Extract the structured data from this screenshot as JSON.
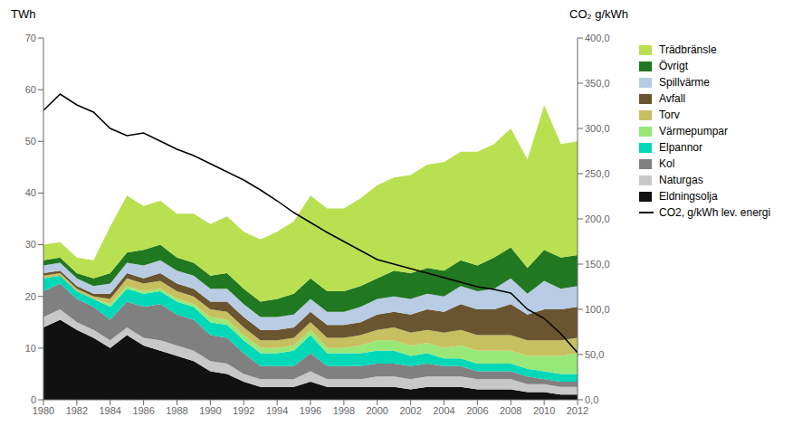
{
  "chart_data": {
    "type": "area",
    "stacked": true,
    "grid": false,
    "legend": "right",
    "y_label": "TWh",
    "y2_label": "CO₂ g/kWh",
    "x": [
      1980,
      1981,
      1982,
      1983,
      1984,
      1985,
      1986,
      1987,
      1988,
      1989,
      1990,
      1991,
      1992,
      1993,
      1994,
      1995,
      1996,
      1997,
      1998,
      1999,
      2000,
      2001,
      2002,
      2003,
      2004,
      2005,
      2006,
      2007,
      2008,
      2009,
      2010,
      2011,
      2012
    ],
    "xlim": [
      1980,
      2012
    ],
    "xticks": [
      1980,
      1982,
      1984,
      1986,
      1988,
      1990,
      1992,
      1994,
      1996,
      1998,
      2000,
      2002,
      2004,
      2006,
      2008,
      2010,
      2012
    ],
    "ylim": [
      0,
      70
    ],
    "yticks": [
      0,
      10,
      20,
      30,
      40,
      50,
      60,
      70
    ],
    "y2lim": [
      0,
      400
    ],
    "y2ticks": [
      {
        "value": 0.0,
        "label": "0,0"
      },
      {
        "value": 50.0,
        "label": "50,0"
      },
      {
        "value": 100.0,
        "label": "100,0"
      },
      {
        "value": 150.0,
        "label": "150,0"
      },
      {
        "value": 200.0,
        "label": "200,0"
      },
      {
        "value": 250.0,
        "label": "250,0"
      },
      {
        "value": 300.0,
        "label": "300,0"
      },
      {
        "value": 350.0,
        "label": "350,0"
      },
      {
        "value": 400.0,
        "label": "400,0"
      }
    ],
    "series": [
      {
        "name": "Eldningsolja",
        "type": "area",
        "color": "#111111",
        "values": [
          14.0,
          15.5,
          13.5,
          12.0,
          10.0,
          12.5,
          10.5,
          9.5,
          8.5,
          7.5,
          5.5,
          5.0,
          3.5,
          2.5,
          2.5,
          2.5,
          3.5,
          2.5,
          2.5,
          2.5,
          2.5,
          2.5,
          2.0,
          2.5,
          2.5,
          2.5,
          2.0,
          2.0,
          2.0,
          1.5,
          1.5,
          1.0,
          1.0
        ]
      },
      {
        "name": "Naturgas",
        "type": "area",
        "color": "#c8c8c8",
        "values": [
          2.0,
          2.0,
          1.5,
          1.5,
          1.5,
          1.5,
          1.5,
          2.0,
          2.0,
          2.0,
          2.0,
          2.0,
          1.5,
          1.5,
          1.5,
          1.5,
          2.0,
          1.5,
          1.5,
          1.5,
          2.0,
          2.0,
          2.0,
          2.0,
          2.0,
          2.0,
          2.0,
          2.0,
          2.0,
          1.5,
          1.5,
          1.5,
          1.5
        ]
      },
      {
        "name": "Kol",
        "type": "area",
        "color": "#808080",
        "values": [
          5.0,
          5.0,
          4.5,
          4.5,
          4.0,
          5.0,
          6.0,
          7.0,
          6.0,
          6.0,
          5.0,
          5.0,
          4.0,
          2.5,
          2.5,
          2.5,
          3.5,
          2.5,
          2.5,
          2.5,
          2.5,
          2.5,
          2.5,
          2.5,
          2.0,
          2.0,
          1.5,
          1.5,
          1.5,
          1.5,
          1.0,
          1.0,
          1.0
        ]
      },
      {
        "name": "Elpannor",
        "type": "area",
        "color": "#00d8b8",
        "values": [
          2.5,
          1.5,
          1.5,
          1.5,
          2.5,
          2.5,
          2.5,
          2.5,
          2.5,
          2.5,
          2.5,
          2.5,
          2.5,
          2.5,
          2.5,
          3.0,
          3.5,
          2.5,
          2.5,
          2.5,
          2.5,
          2.5,
          2.0,
          2.0,
          1.5,
          1.5,
          1.5,
          1.5,
          1.5,
          1.5,
          1.5,
          1.5,
          1.5
        ]
      },
      {
        "name": "Värmepumpar",
        "type": "area",
        "color": "#98e878",
        "values": [
          0.0,
          0.0,
          0.0,
          0.0,
          0.5,
          0.5,
          0.5,
          0.5,
          0.5,
          0.5,
          1.0,
          1.0,
          1.0,
          1.0,
          1.0,
          1.0,
          1.0,
          1.0,
          1.0,
          1.5,
          2.0,
          2.0,
          2.0,
          2.0,
          2.0,
          2.5,
          2.5,
          2.5,
          2.5,
          2.5,
          3.0,
          3.5,
          4.0
        ]
      },
      {
        "name": "Torv",
        "type": "area",
        "color": "#c8c060",
        "values": [
          0.5,
          0.5,
          0.5,
          0.5,
          1.0,
          1.5,
          1.5,
          1.5,
          1.5,
          1.5,
          1.5,
          1.5,
          1.5,
          1.5,
          1.5,
          1.5,
          1.5,
          2.0,
          2.0,
          2.0,
          2.0,
          2.5,
          2.5,
          2.5,
          3.0,
          3.0,
          3.0,
          3.0,
          3.0,
          3.0,
          3.0,
          3.0,
          3.0
        ]
      },
      {
        "name": "Avfall",
        "type": "area",
        "color": "#6a5530",
        "values": [
          0.5,
          0.5,
          0.5,
          0.5,
          1.0,
          1.0,
          1.0,
          1.5,
          1.5,
          1.5,
          1.5,
          2.0,
          2.0,
          2.0,
          2.0,
          2.0,
          2.0,
          2.5,
          2.5,
          2.5,
          3.0,
          3.0,
          3.5,
          4.0,
          4.0,
          5.0,
          5.0,
          5.0,
          6.0,
          5.0,
          6.0,
          6.0,
          6.0
        ]
      },
      {
        "name": "Spillvärme",
        "type": "area",
        "color": "#b8cce4",
        "values": [
          1.5,
          1.5,
          1.5,
          1.5,
          2.0,
          2.0,
          2.5,
          2.5,
          2.5,
          2.5,
          2.5,
          2.5,
          2.5,
          2.5,
          2.5,
          2.5,
          2.5,
          2.5,
          2.5,
          3.0,
          3.0,
          3.0,
          3.0,
          3.0,
          3.0,
          3.5,
          3.5,
          4.0,
          5.0,
          4.0,
          5.5,
          4.0,
          4.0
        ]
      },
      {
        "name": "Övrigt",
        "type": "area",
        "color": "#207820",
        "values": [
          1.0,
          1.0,
          1.0,
          1.5,
          2.0,
          2.0,
          3.0,
          3.0,
          2.5,
          2.5,
          2.5,
          3.0,
          3.0,
          3.0,
          3.5,
          4.0,
          4.0,
          4.0,
          4.0,
          4.0,
          4.0,
          5.0,
          5.0,
          5.0,
          5.0,
          5.0,
          5.0,
          6.0,
          6.0,
          5.0,
          6.0,
          6.0,
          6.0
        ]
      },
      {
        "name": "Trädbränsle",
        "type": "area",
        "color": "#b8e050",
        "values": [
          3.0,
          3.0,
          3.0,
          3.5,
          9.0,
          11.0,
          8.5,
          8.5,
          8.5,
          9.5,
          10.0,
          11.0,
          11.0,
          12.0,
          13.0,
          14.0,
          16.0,
          16.0,
          16.0,
          17.0,
          18.0,
          18.0,
          19.0,
          20.0,
          21.0,
          21.0,
          22.0,
          22.0,
          23.0,
          21.0,
          28.0,
          22.0,
          22.0
        ]
      },
      {
        "name": "CO2, g/kWh lev. energi",
        "type": "line",
        "axis": "y2",
        "color": "#000000",
        "values": [
          320,
          338,
          326,
          318,
          300,
          292,
          295,
          286,
          277,
          270,
          261,
          252,
          243,
          232,
          220,
          207,
          196,
          185,
          175,
          165,
          155,
          150,
          145,
          140,
          135,
          130,
          125,
          122,
          118,
          100,
          90,
          73,
          52
        ]
      }
    ]
  }
}
